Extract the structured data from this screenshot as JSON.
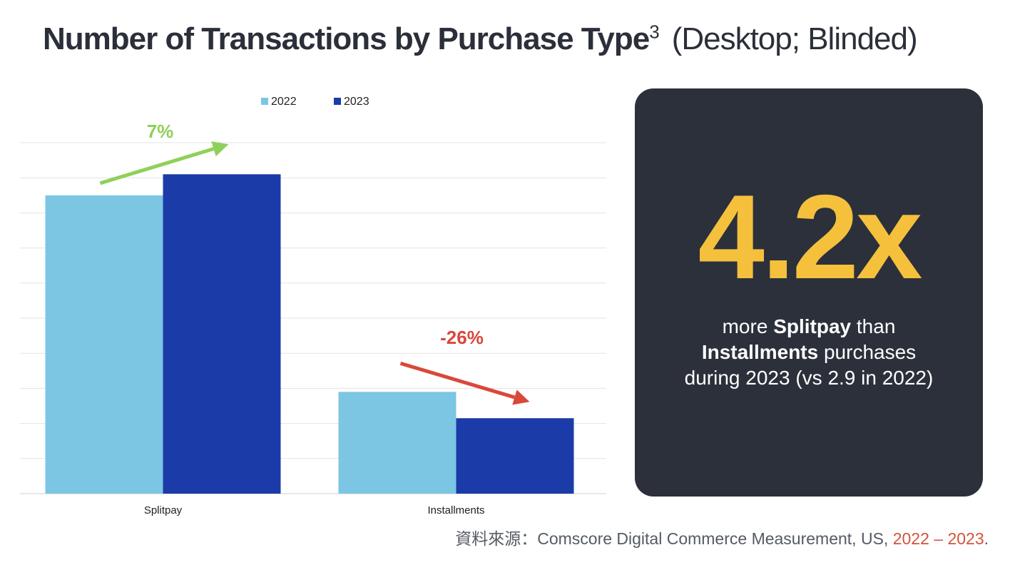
{
  "title": {
    "main": "Number of Transactions by Purchase Type",
    "superscript": "3",
    "qualifier": "(Desktop; Blinded)"
  },
  "chart_data": {
    "type": "bar",
    "categories": [
      "Splitpay",
      "Installments"
    ],
    "series": [
      {
        "name": "2022",
        "values": [
          85,
          29
        ],
        "color": "#7cc6e4"
      },
      {
        "name": "2023",
        "values": [
          91,
          21.5
        ],
        "color": "#1b3ba8"
      }
    ],
    "ylim": [
      0,
      100
    ],
    "grid": true,
    "legend": "top-center",
    "annotations": [
      {
        "text": "7%",
        "category": "Splitpay",
        "direction": "up",
        "color": "#8fd05a"
      },
      {
        "text": "-26%",
        "category": "Installments",
        "direction": "down",
        "color": "#d9483b"
      }
    ]
  },
  "callout": {
    "big_value": "4.2x",
    "line1_pre": "more ",
    "line1_bold": "Splitpay",
    "line1_post": " than",
    "line2_bold": "Installments",
    "line2_post": " purchases",
    "line3": "during 2023 (vs 2.9 in 2022)"
  },
  "source": {
    "prefix": "資料來源：Comscore Digital Commerce Measurement, US, ",
    "highlight": "2022 –  2023",
    "suffix": "."
  }
}
